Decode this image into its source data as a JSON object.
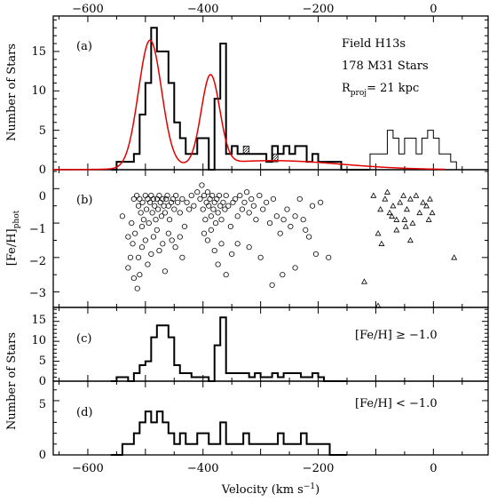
{
  "chart_data": {
    "type": "multi-panel histogram and scatter",
    "x_axis": {
      "label": "Velocity (km s",
      "label_sup": "−1",
      "label_close": ")",
      "range": [
        -660,
        95
      ],
      "ticks": [
        -600,
        -400,
        -200,
        0
      ],
      "tick_labels": [
        "−600",
        "−400",
        "−200",
        "0"
      ]
    },
    "annotations": {
      "field": "Field H13s",
      "count": "178 M31 Stars",
      "rproj_prefix": "R",
      "rproj_sub": "proj",
      "rproj_value": "= 21 kpc"
    },
    "panels": [
      {
        "id": "a",
        "panel_label": "(a)",
        "ylabel": "Number of Stars",
        "ylim": [
          0,
          19.5
        ],
        "yticks": [
          0,
          5,
          10,
          15
        ],
        "ytick_labels": [
          "0",
          "5",
          "10",
          "15"
        ],
        "bin_width": 10,
        "bin_start": -560,
        "counts": [
          0,
          1,
          1,
          1,
          2,
          7,
          11,
          18,
          15,
          15,
          11,
          6,
          4,
          2,
          2,
          4,
          4,
          0,
          9,
          16,
          2,
          3,
          2,
          2,
          2,
          2,
          2,
          1,
          3,
          2,
          3,
          2,
          3,
          3,
          1,
          2,
          1,
          1,
          1,
          1,
          0,
          0,
          0,
          0,
          0
        ],
        "shaded_bins": [
          [
            -330,
            3
          ],
          [
            -280,
            2
          ]
        ],
        "foreground_bins": {
          "bin_start": -120,
          "counts": [
            0,
            2,
            2,
            2,
            5,
            4,
            2,
            4,
            4,
            2,
            4,
            5,
            4,
            2,
            2,
            1,
            0
          ]
        },
        "fit_curve": {
          "components": [
            {
              "amplitude": 16.2,
              "mean": -492,
              "sigma": 20
            },
            {
              "amplitude": 11.3,
              "mean": -387,
              "sigma": 16
            },
            {
              "amplitude": 1.15,
              "mean": -280,
              "sigma": 120
            }
          ]
        }
      },
      {
        "id": "b",
        "panel_label": "(b)",
        "ylabel": "[Fe/H]",
        "ylabel_sub": "phot",
        "ylim": [
          -3.45,
          0.55
        ],
        "yticks": [
          0,
          -1,
          -2,
          -3
        ],
        "ytick_labels": [
          "0",
          "−1",
          "−2",
          "−3"
        ],
        "m31_stars_circles": [
          [
            -540,
            -0.8
          ],
          [
            -520,
            -0.3
          ],
          [
            -515,
            -0.2
          ],
          [
            -512,
            -0.5
          ],
          [
            -510,
            -0.3
          ],
          [
            -508,
            -0.7
          ],
          [
            -505,
            -0.4
          ],
          [
            -503,
            -0.9
          ],
          [
            -500,
            -0.2
          ],
          [
            -498,
            -0.6
          ],
          [
            -496,
            -0.3
          ],
          [
            -494,
            -1.0
          ],
          [
            -492,
            -0.4
          ],
          [
            -490,
            -0.2
          ],
          [
            -488,
            -0.7
          ],
          [
            -486,
            -0.3
          ],
          [
            -484,
            -0.5
          ],
          [
            -482,
            -0.9
          ],
          [
            -480,
            -0.3
          ],
          [
            -478,
            -0.6
          ],
          [
            -476,
            -0.2
          ],
          [
            -474,
            -0.4
          ],
          [
            -472,
            -0.8
          ],
          [
            -470,
            -0.3
          ],
          [
            -468,
            -0.5
          ],
          [
            -466,
            -0.7
          ],
          [
            -464,
            -0.3
          ],
          [
            -462,
            -0.2
          ],
          [
            -460,
            -0.5
          ],
          [
            -458,
            -0.9
          ],
          [
            -455,
            -0.4
          ],
          [
            -452,
            -0.3
          ],
          [
            -450,
            -0.6
          ],
          [
            -447,
            -0.2
          ],
          [
            -444,
            -0.4
          ],
          [
            -440,
            -0.7
          ],
          [
            -436,
            -0.3
          ],
          [
            -432,
            -1.1
          ],
          [
            -428,
            -0.4
          ],
          [
            -424,
            -0.6
          ],
          [
            -420,
            -0.2
          ],
          [
            -416,
            -0.5
          ],
          [
            -530,
            -1.4
          ],
          [
            -522,
            -1.6
          ],
          [
            -518,
            -1.3
          ],
          [
            -512,
            -2.0
          ],
          [
            -506,
            -1.7
          ],
          [
            -500,
            -1.5
          ],
          [
            -496,
            -2.2
          ],
          [
            -490,
            -1.9
          ],
          [
            -486,
            -1.4
          ],
          [
            -480,
            -1.2
          ],
          [
            -476,
            -1.8
          ],
          [
            -470,
            -1.6
          ],
          [
            -466,
            -2.4
          ],
          [
            -460,
            -1.3
          ],
          [
            -454,
            -1.5
          ],
          [
            -448,
            -1.7
          ],
          [
            -440,
            -1.4
          ],
          [
            -436,
            -2.0
          ],
          [
            -530,
            -2.3
          ],
          [
            -526,
            -2.0
          ],
          [
            -520,
            -2.6
          ],
          [
            -514,
            -2.9
          ],
          [
            -510,
            -2.5
          ],
          [
            -524,
            -1.0
          ],
          [
            -506,
            -1.1
          ],
          [
            -410,
            -0.1
          ],
          [
            -405,
            -0.3
          ],
          [
            -402,
            0.1
          ],
          [
            -400,
            -0.6
          ],
          [
            -398,
            -0.2
          ],
          [
            -396,
            -0.9
          ],
          [
            -394,
            -0.4
          ],
          [
            -392,
            -0.1
          ],
          [
            -390,
            -0.5
          ],
          [
            -388,
            -0.3
          ],
          [
            -386,
            -0.8
          ],
          [
            -384,
            -0.2
          ],
          [
            -382,
            -0.6
          ],
          [
            -380,
            -0.4
          ],
          [
            -378,
            -1.0
          ],
          [
            -376,
            -0.3
          ],
          [
            -374,
            -0.7
          ],
          [
            -372,
            -0.2
          ],
          [
            -370,
            -0.5
          ],
          [
            -368,
            -0.9
          ],
          [
            -365,
            -0.4
          ],
          [
            -362,
            -0.6
          ],
          [
            -360,
            -0.2
          ],
          [
            -356,
            -0.5
          ],
          [
            -352,
            -1.1
          ],
          [
            -348,
            -0.4
          ],
          [
            -344,
            -0.3
          ],
          [
            -340,
            -0.8
          ],
          [
            -336,
            -0.2
          ],
          [
            -332,
            -0.6
          ],
          [
            -328,
            -0.4
          ],
          [
            -324,
            -0.1
          ],
          [
            -320,
            -0.7
          ],
          [
            -316,
            -0.3
          ],
          [
            -312,
            -0.5
          ],
          [
            -308,
            -0.9
          ],
          [
            -302,
            -0.2
          ],
          [
            -296,
            -0.6
          ],
          [
            -290,
            -0.4
          ],
          [
            -284,
            -1.0
          ],
          [
            -278,
            -0.3
          ],
          [
            -272,
            -0.8
          ],
          [
            -266,
            -1.3
          ],
          [
            -260,
            -0.9
          ],
          [
            -254,
            -0.6
          ],
          [
            -248,
            -1.1
          ],
          [
            -240,
            -0.8
          ],
          [
            -232,
            -0.3
          ],
          [
            -226,
            -0.9
          ],
          [
            -216,
            -1.4
          ],
          [
            -210,
            -0.5
          ],
          [
            -204,
            -1.9
          ],
          [
            -196,
            -0.4
          ],
          [
            -398,
            -1.3
          ],
          [
            -392,
            -1.5
          ],
          [
            -386,
            -1.2
          ],
          [
            -380,
            -1.8
          ],
          [
            -374,
            -2.2
          ],
          [
            -368,
            -1.6
          ],
          [
            -360,
            -2.5
          ],
          [
            -350,
            -1.9
          ],
          [
            -340,
            -1.6
          ],
          [
            -320,
            -1.7
          ],
          [
            -300,
            -2.0
          ],
          [
            -280,
            -2.8
          ],
          [
            -262,
            -2.5
          ],
          [
            -240,
            -2.3
          ],
          [
            -222,
            -1.2
          ],
          [
            -182,
            -2.0
          ]
        ],
        "foreground_triangles": [
          [
            -104,
            -0.2
          ],
          [
            -92,
            -0.6
          ],
          [
            -84,
            -0.3
          ],
          [
            -80,
            -0.1
          ],
          [
            -76,
            -0.7
          ],
          [
            -70,
            -0.5
          ],
          [
            -64,
            -0.9
          ],
          [
            -58,
            -0.4
          ],
          [
            -52,
            -0.2
          ],
          [
            -46,
            -0.6
          ],
          [
            -40,
            -0.3
          ],
          [
            -36,
            -1.0
          ],
          [
            -30,
            -0.2
          ],
          [
            -24,
            -0.7
          ],
          [
            -18,
            -0.4
          ],
          [
            -12,
            -0.5
          ],
          [
            -6,
            -0.3
          ],
          [
            -72,
            -0.8
          ],
          [
            -64,
            -1.2
          ],
          [
            -50,
            -0.9
          ],
          [
            -40,
            -1.5
          ],
          [
            -8,
            -0.9
          ],
          [
            -2,
            -0.7
          ],
          [
            -96,
            -1.3
          ],
          [
            -90,
            -1.6
          ],
          [
            -48,
            -1.1
          ],
          [
            -120,
            -2.7
          ],
          [
            -96,
            -3.4
          ],
          [
            36,
            -2.0
          ]
        ]
      },
      {
        "id": "c",
        "panel_label": "(c)",
        "condition": "[Fe/H] ≥ −1.0",
        "ylabel": "Number of Stars",
        "ylim": [
          0,
          18.5
        ],
        "yticks": [
          0,
          5,
          10,
          15
        ],
        "ytick_labels": [
          "0",
          "5",
          "10",
          "15"
        ],
        "bin_width": 10,
        "bin_start": -560,
        "counts": [
          0,
          1,
          1,
          0,
          2,
          4,
          5,
          11,
          14,
          14,
          11,
          4,
          2,
          2,
          1,
          1,
          1,
          0,
          9,
          16,
          2,
          2,
          2,
          2,
          1,
          2,
          1,
          1,
          2,
          1,
          2,
          2,
          2,
          1,
          1,
          2,
          1,
          0,
          0,
          0,
          0
        ]
      },
      {
        "id": "d",
        "panel_label": "(d)",
        "condition": "[Fe/H] < −1.0",
        "ylabel": "",
        "ylim": [
          0,
          6.8
        ],
        "yticks": [
          0,
          5
        ],
        "ytick_labels": [
          "0",
          "5"
        ],
        "bin_width": 10,
        "bin_start": -560,
        "counts": [
          0,
          0,
          1,
          1,
          2,
          3,
          4,
          3,
          4,
          3,
          2,
          1,
          2,
          1,
          1,
          2,
          2,
          1,
          1,
          3,
          1,
          1,
          1,
          2,
          1,
          1,
          1,
          1,
          1,
          2,
          1,
          1,
          1,
          2,
          1,
          1,
          1,
          1,
          0,
          0,
          0
        ]
      }
    ]
  }
}
